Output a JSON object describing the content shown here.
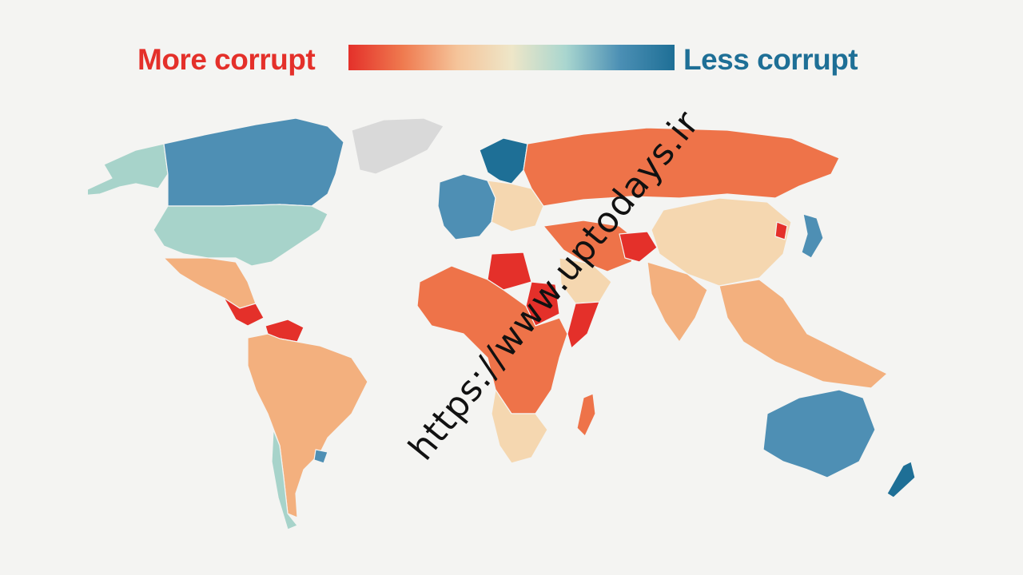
{
  "legend": {
    "left_label": "More corrupt",
    "right_label": "Less corrupt",
    "left_color": "#e4302a",
    "right_color": "#1e6f96",
    "scale_colors": [
      "#e4302a",
      "#ef7a4f",
      "#f5c49a",
      "#eee6c8",
      "#a9d6cf",
      "#4b8fb4",
      "#1e6f96"
    ]
  },
  "palette": {
    "very_high": "#e4302a",
    "high": "#ee7349",
    "mid_high": "#f3b07e",
    "mid": "#f5d7b0",
    "low_mid": "#a7d3ca",
    "low": "#4e8fb4",
    "very_low": "#1e6f96",
    "no_data": "#d9d9d9"
  },
  "watermark": "https://www.uptodays.ir",
  "map": {
    "type": "choropleth",
    "metric": "corruption level",
    "regions": [
      {
        "name": "Alaska",
        "level": "low_mid"
      },
      {
        "name": "Canada",
        "level": "low"
      },
      {
        "name": "Greenland",
        "level": "no_data"
      },
      {
        "name": "United States",
        "level": "low_mid"
      },
      {
        "name": "Mexico",
        "level": "mid_high"
      },
      {
        "name": "Central America",
        "level": "very_high"
      },
      {
        "name": "Venezuela",
        "level": "very_high"
      },
      {
        "name": "South America",
        "level": "mid_high"
      },
      {
        "name": "Uruguay",
        "level": "low"
      },
      {
        "name": "Chile",
        "level": "low_mid"
      },
      {
        "name": "Scandinavia",
        "level": "very_low"
      },
      {
        "name": "Western Europe",
        "level": "low"
      },
      {
        "name": "Eastern Europe",
        "level": "mid"
      },
      {
        "name": "Russia",
        "level": "high"
      },
      {
        "name": "China",
        "level": "mid"
      },
      {
        "name": "Japan",
        "level": "low"
      },
      {
        "name": "North Korea",
        "level": "very_high"
      },
      {
        "name": "Middle East",
        "level": "high"
      },
      {
        "name": "Afghanistan",
        "level": "very_high"
      },
      {
        "name": "Saudi Arabia",
        "level": "mid"
      },
      {
        "name": "India",
        "level": "mid_high"
      },
      {
        "name": "Southeast Asia",
        "level": "mid_high"
      },
      {
        "name": "Libya",
        "level": "very_high"
      },
      {
        "name": "Sudan",
        "level": "very_high"
      },
      {
        "name": "Somalia",
        "level": "very_high"
      },
      {
        "name": "Sub-Saharan Africa",
        "level": "high"
      },
      {
        "name": "Southern Africa",
        "level": "mid"
      },
      {
        "name": "Madagascar",
        "level": "high"
      },
      {
        "name": "Australia",
        "level": "low"
      },
      {
        "name": "New Zealand",
        "level": "very_low"
      }
    ]
  }
}
